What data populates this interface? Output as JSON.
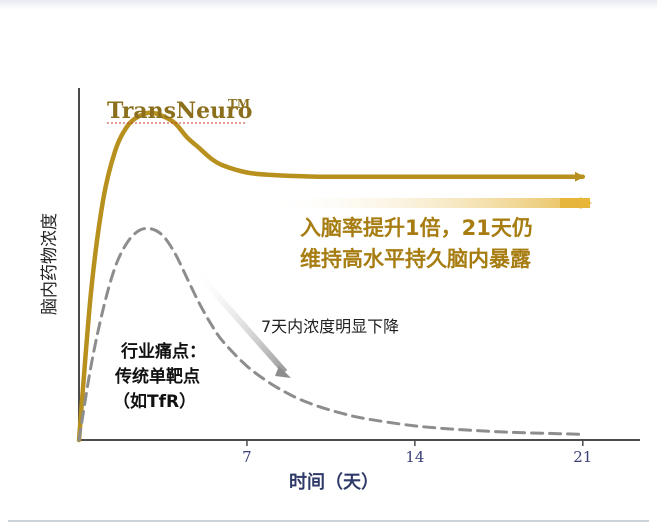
{
  "chart_data": {
    "type": "line",
    "xlabel": "时间（天）",
    "ylabel": "脑内药物浓度",
    "x_ticks": [
      "7",
      "14",
      "21"
    ],
    "xlim": [
      0,
      21.3
    ],
    "ylim": [
      0,
      100
    ],
    "series": [
      {
        "name": "TransNeuro",
        "name_mark": "TM",
        "color": "#b7901d",
        "style": "solid",
        "x": [
          0,
          0.5,
          1,
          1.5,
          2,
          2.5,
          3,
          3.5,
          4,
          4.5,
          5,
          5.5,
          6,
          7,
          8,
          9,
          10,
          11,
          12,
          14,
          16,
          18,
          20,
          21
        ],
        "y": [
          0,
          42,
          68,
          82,
          89,
          92,
          93,
          92,
          90,
          86,
          83,
          80,
          78,
          76,
          75.3,
          75,
          74.8,
          74.8,
          74.8,
          74.8,
          74.8,
          74.8,
          74.8,
          74.8
        ]
      },
      {
        "name": "行业痛点：传统单靶点（如TfR）",
        "color": "#8d8d8d",
        "style": "dashed",
        "x": [
          0,
          0.5,
          1,
          1.5,
          2,
          2.5,
          3,
          3.5,
          4,
          4.5,
          5,
          5.5,
          6,
          7,
          8,
          9,
          10,
          11,
          12,
          14,
          16,
          18,
          20,
          21
        ],
        "y": [
          0,
          21,
          37,
          49,
          56,
          59.5,
          60,
          58,
          53,
          46,
          39,
          33,
          28,
          21,
          16,
          12.2,
          9.5,
          7.5,
          6,
          4,
          2.9,
          2.2,
          1.8,
          1.6
        ]
      }
    ]
  },
  "annotations": {
    "series_label": "TransNeuro",
    "series_label_mark": "TM",
    "gold_line1": "入脑率提升1倍，21天仍",
    "gold_line2": "维持高水平持久脑内暴露",
    "gray_note": "7天内浓度明显下降",
    "pain_line1": "行业痛点：",
    "pain_line2": "传统单靶点",
    "pain_line3": "（如TfR）"
  },
  "colors": {
    "gold": "#b7901d",
    "gold_text": "#a77d12",
    "gray": "#8d8d8d",
    "axis": "#4b4b4b"
  }
}
